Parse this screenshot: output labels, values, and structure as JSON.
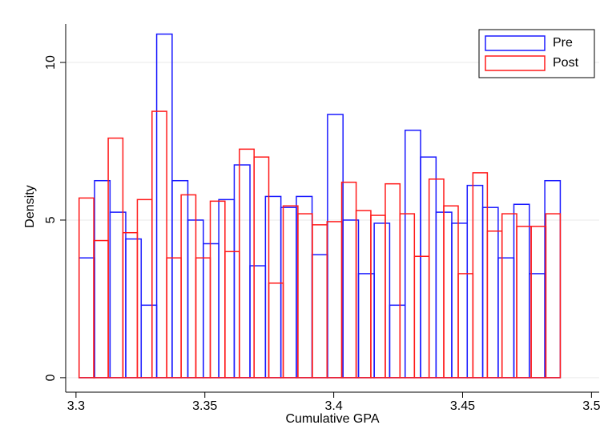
{
  "chart_data": {
    "type": "histogram",
    "xlabel": "Cumulative GPA",
    "ylabel": "Density",
    "xlim": [
      3.296,
      3.503
    ],
    "ylim": [
      -0.46,
      11.22
    ],
    "xticks": [
      3.3,
      3.35,
      3.4,
      3.45,
      3.5
    ],
    "yticks": [
      0,
      5,
      10
    ],
    "grid": true,
    "legend": "top-right",
    "series": [
      {
        "name": "Pre",
        "color": "#1a1aff",
        "bins": [
          3.3012,
          3.3072,
          3.3132,
          3.3193,
          3.3253,
          3.3313,
          3.3373,
          3.3434,
          3.3494,
          3.3554,
          3.3614,
          3.3675,
          3.3735,
          3.3795,
          3.3855,
          3.3916,
          3.3976,
          3.4036,
          3.4096,
          3.4157,
          3.4217,
          3.4277,
          3.4337,
          3.4397,
          3.4458,
          3.4518,
          3.4578,
          3.4638,
          3.4699,
          3.4759,
          3.4819,
          3.4879
        ],
        "values": [
          3.8,
          6.25,
          5.25,
          4.4,
          2.3,
          10.9,
          6.25,
          5.0,
          4.25,
          5.65,
          6.75,
          3.55,
          5.75,
          5.4,
          5.75,
          3.9,
          8.35,
          5.0,
          3.3,
          4.9,
          2.3,
          7.85,
          7.0,
          5.25,
          4.9,
          6.1,
          5.4,
          3.8,
          5.5,
          3.3,
          6.25
        ]
      },
      {
        "name": "Post",
        "color": "#ff1a1a",
        "bins": [
          3.3012,
          3.3069,
          3.3125,
          3.3182,
          3.3238,
          3.3295,
          3.3352,
          3.3408,
          3.3465,
          3.3521,
          3.3578,
          3.3634,
          3.3691,
          3.3748,
          3.3804,
          3.3861,
          3.3917,
          3.3974,
          3.4031,
          3.4087,
          3.4144,
          3.42,
          3.4257,
          3.4313,
          3.437,
          3.4427,
          3.4483,
          3.454,
          3.4596,
          3.4653,
          3.471,
          3.4766,
          3.4823,
          3.4879
        ],
        "values": [
          5.7,
          4.35,
          7.6,
          4.6,
          5.65,
          8.45,
          3.8,
          5.8,
          3.8,
          5.6,
          4.0,
          7.25,
          7.0,
          3.0,
          5.45,
          5.2,
          4.85,
          4.95,
          6.2,
          5.3,
          5.15,
          6.15,
          5.2,
          3.85,
          6.3,
          5.45,
          3.3,
          6.5,
          4.65,
          5.2,
          4.8,
          4.8,
          5.2
        ]
      }
    ]
  }
}
